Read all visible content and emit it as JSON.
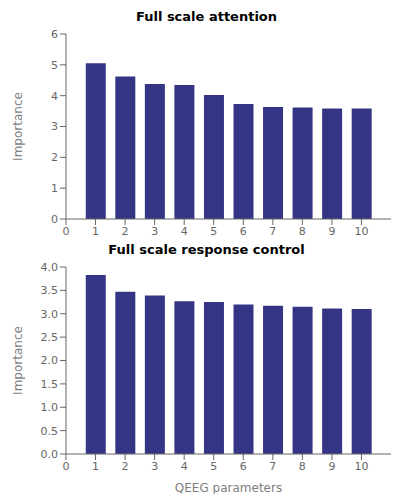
{
  "chart_data": [
    {
      "type": "bar",
      "title": "Full scale attention",
      "ylabel": "Importance",
      "x": [
        1,
        2,
        3,
        4,
        5,
        6,
        7,
        8,
        9,
        10
      ],
      "values": [
        5.05,
        4.62,
        4.38,
        4.35,
        4.02,
        3.73,
        3.63,
        3.62,
        3.58,
        3.58
      ],
      "color": "#353585",
      "xlim": [
        0,
        11
      ],
      "xticks": [
        0,
        1,
        2,
        3,
        4,
        5,
        6,
        7,
        8,
        9,
        10
      ],
      "ylim": [
        0,
        6
      ],
      "yticks": [
        0,
        1,
        2,
        3,
        4,
        5,
        6
      ],
      "grid": false
    },
    {
      "type": "bar",
      "title": "Full scale response control",
      "ylabel": "Importance",
      "xlabel": "QEEG parameters",
      "x": [
        1,
        2,
        3,
        4,
        5,
        6,
        7,
        8,
        9,
        10
      ],
      "values": [
        3.83,
        3.47,
        3.39,
        3.27,
        3.25,
        3.2,
        3.17,
        3.15,
        3.11,
        3.1
      ],
      "color": "#353585",
      "xlim": [
        0,
        11
      ],
      "xticks": [
        0,
        1,
        2,
        3,
        4,
        5,
        6,
        7,
        8,
        9,
        10
      ],
      "ylim": [
        0.0,
        4.0
      ],
      "yticks": [
        {
          "value": 0,
          "label": "0.0"
        },
        0.5,
        {
          "value": 1,
          "label": "1.0"
        },
        1.5,
        {
          "value": 2,
          "label": "2.0"
        },
        2.5,
        {
          "value": 3,
          "label": "3.0"
        },
        3.5,
        {
          "value": 4,
          "label": "4.0"
        }
      ],
      "grid": false
    }
  ]
}
